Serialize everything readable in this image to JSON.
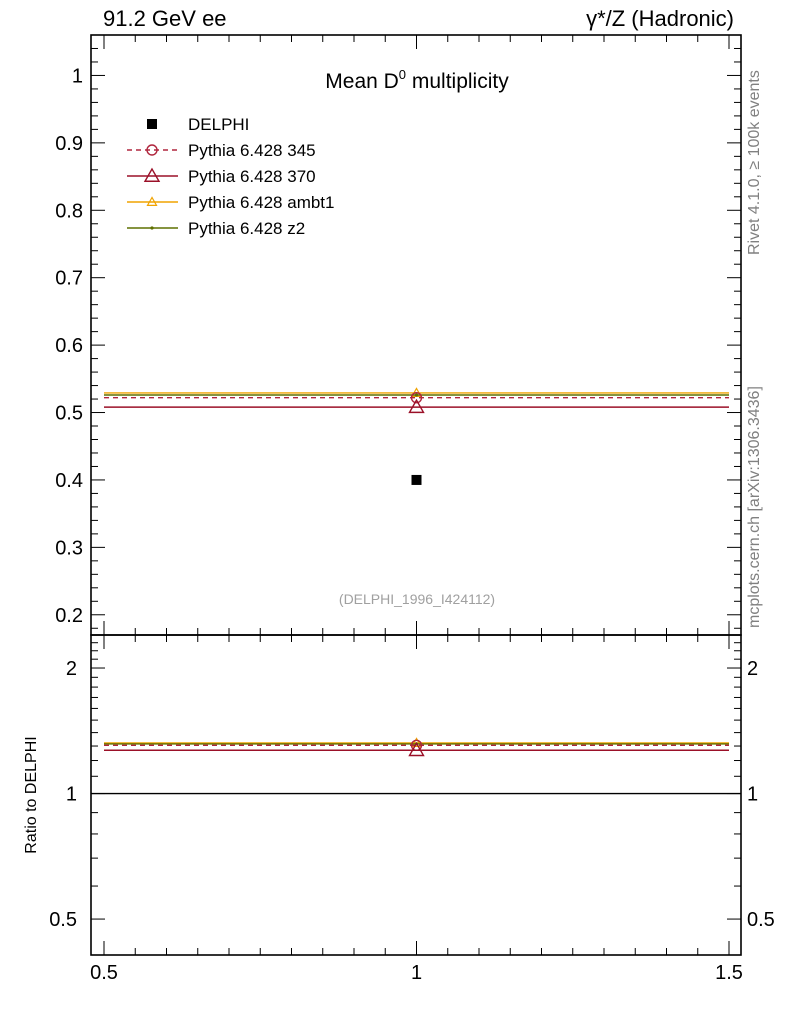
{
  "header": {
    "left": "91.2 GeV ee",
    "right": "γ*/Z (Hadronic)"
  },
  "side": {
    "rivet": "Rivet 4.1.0, ≥ 100k events",
    "mcplots": "mcplots.cern.ch [arXiv:1306.3436]"
  },
  "chart_data": [
    {
      "type": "scatter",
      "title": "Mean D",
      "title_sup": "0",
      "title_rest": " multiplicity",
      "watermark": "(DELPHI_1996_I424112)",
      "xlim": [
        0.5,
        1.5
      ],
      "ylim": [
        0.17,
        1.06
      ],
      "yticks": [
        0.2,
        0.3,
        0.4,
        0.5,
        0.6,
        0.7,
        0.8,
        0.9,
        1
      ],
      "ytick_labels": [
        "0.2",
        "0.3",
        "0.4",
        "0.5",
        "0.6",
        "0.7",
        "0.8",
        "0.9",
        "1"
      ],
      "series": [
        {
          "name": "DELPHI",
          "marker": "square",
          "line": "none",
          "color": "#000000",
          "x": 1.0,
          "y": 0.4
        },
        {
          "name": "Pythia 6.428 345",
          "marker": "circle",
          "line": "dashed",
          "color": "#b0263e",
          "x": [
            0.5,
            1.5
          ],
          "y": 0.522
        },
        {
          "name": "Pythia 6.428 370",
          "marker": "triangle",
          "line": "solid",
          "color": "#9b1028",
          "x": [
            0.5,
            1.5
          ],
          "y": 0.508
        },
        {
          "name": "Pythia 6.428 ambt1",
          "marker": "triangle-small",
          "line": "solid",
          "color": "#f0a300",
          "x": [
            0.5,
            1.5
          ],
          "y": 0.529
        },
        {
          "name": "Pythia 6.428 z2",
          "marker": "dot",
          "line": "solid",
          "color": "#5f7000",
          "x": [
            0.5,
            1.5
          ],
          "y": 0.526
        }
      ],
      "legend_location": "upper-left"
    },
    {
      "type": "line",
      "ylabel": "Ratio to DELPHI",
      "scale": "log",
      "xlim": [
        0.5,
        1.5
      ],
      "ylim": [
        0.41,
        2.4
      ],
      "yticks": [
        0.5,
        1,
        2
      ],
      "ytick_labels": [
        "0.5",
        "1",
        "2"
      ],
      "xticks": [
        0.5,
        1,
        1.5
      ],
      "xtick_labels": [
        "0.5",
        "1",
        "1.5"
      ],
      "reference": 1.0,
      "series": [
        {
          "name": "Pythia 6.428 345",
          "color": "#b0263e",
          "value": 1.305
        },
        {
          "name": "Pythia 6.428 370",
          "color": "#9b1028",
          "value": 1.27
        },
        {
          "name": "Pythia 6.428 ambt1",
          "color": "#f0a300",
          "value": 1.322
        },
        {
          "name": "Pythia 6.428 z2",
          "color": "#5f7000",
          "value": 1.315
        }
      ]
    }
  ]
}
